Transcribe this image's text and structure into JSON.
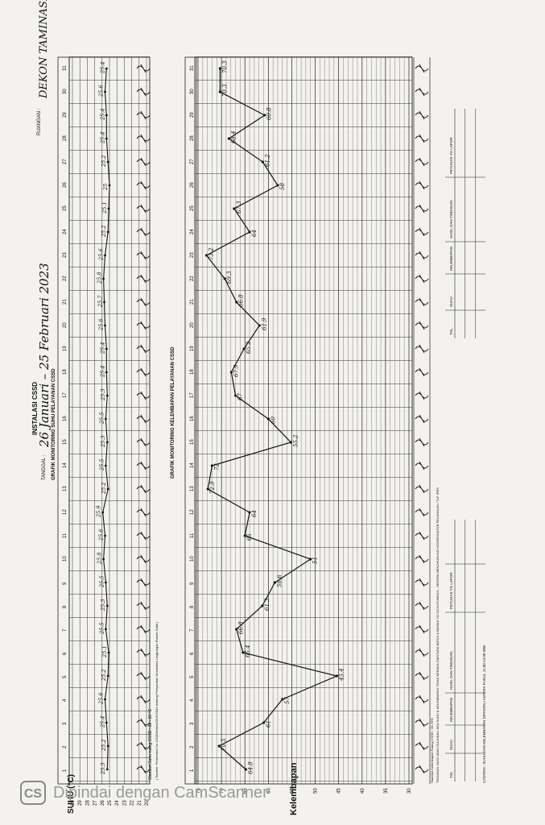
{
  "header": {
    "title": "INSTALASI CSSD",
    "date_label": "TANGGAL :",
    "date_value": "26 Januari – 25 Februari 2023",
    "subtitle": "GRAFIK MONITORING SUHU PELAYANAN CSSD",
    "room_label": "RUANGAN :",
    "room_value": "DEKON TAMINASI"
  },
  "days": [
    "1",
    "2",
    "3",
    "4",
    "5",
    "6",
    "7",
    "8",
    "9",
    "10",
    "11",
    "12",
    "13",
    "14",
    "15",
    "16",
    "17",
    "18",
    "19",
    "20",
    "21",
    "22",
    "23",
    "24",
    "25",
    "26",
    "27",
    "28",
    "29",
    "30",
    "31"
  ],
  "temp_chart": {
    "ylabel": "SUHU (°C)",
    "ticks": [
      "30",
      "29",
      "28",
      "27",
      "26",
      "25",
      "24",
      "23",
      "22",
      "21",
      "20"
    ],
    "ylim": [
      20,
      30
    ],
    "standard_note": "Standart Suhu ruang CSSD : 22 - 30 °C",
    "source_note": "( Sumber: Permenkes No.1204/Menkes/SK/X/2004 tentang Persyaratan Kesehatan Lingkungan Rumah Sakit )"
  },
  "humidity_chart": {
    "title": "GRAFIK MONITORING KELEMBAPAN PELAYANAN CSSD",
    "ylabel": "Kelembapan",
    "ticks": [
      "75",
      "70",
      "65",
      "60",
      "55",
      "50",
      "45",
      "40",
      "35",
      "30"
    ],
    "ylim": [
      30,
      75
    ],
    "standard_note": "Standart Kelembapan Ruang CSSD : 35-75%"
  },
  "action_table": {
    "note": "TINDAKAN YANG AKAN DIAJUKAN JIKA SUHU & KELEMBAPAN TIDAK BERADA DIANTARA BATAS & BAWAH YG DICANTUMKAN , SEGERA MENGHUBUNGI KOORDINATOR PELAYANAN / TLP IPRS",
    "headers": [
      "TGL",
      "SUHU",
      "KELEMBAPAN",
      "HASIL DAN TINDAKAN",
      "PETUGAS YG LAPOR"
    ]
  },
  "footer": {
    "note": "CATATAN : SUHU DAN KELEMBAPAN DIPANTAU ANTARA PUKUL 11.00-13.00 WIB"
  },
  "watermark": {
    "badge": "CS",
    "text": "Dipindai dengan CamScanner"
  },
  "chart_data": [
    {
      "type": "line",
      "x": [
        1,
        2,
        3,
        4,
        5,
        6,
        7,
        8,
        9,
        10,
        11,
        12,
        13,
        14,
        15,
        16,
        17,
        18,
        19,
        20,
        21,
        22,
        23,
        24,
        25,
        26,
        27,
        28,
        29,
        30,
        31
      ],
      "series": [
        {
          "values": [
            25.3,
            25.2,
            25.4,
            25.6,
            25.2,
            25.1,
            25.5,
            25.3,
            25.5,
            25.8,
            25.6,
            25.9,
            25.2,
            25.5,
            25.3,
            25.5,
            25.3,
            25.4,
            25.4,
            25.6,
            25.7,
            25.8,
            25.6,
            25.2,
            25.1,
            25.0,
            25.2,
            25.4,
            25.4,
            25.6,
            25.4
          ]
        }
      ],
      "xlabel": "",
      "ylabel": "SUHU (°C)",
      "ylim": [
        20,
        30
      ]
    },
    {
      "type": "line",
      "x": [
        1,
        2,
        3,
        4,
        5,
        6,
        7,
        8,
        9,
        10,
        11,
        12,
        13,
        14,
        15,
        16,
        17,
        18,
        19,
        20,
        21,
        22,
        23,
        24,
        25,
        26,
        27,
        28,
        29,
        30,
        31
      ],
      "series": [
        {
          "values": [
            64.8,
            70.5,
            61,
            57,
            45.4,
            65.4,
            66.8,
            61.3,
            58.6,
            51,
            65,
            64,
            72.9,
            72,
            55.2,
            60,
            67,
            67.9,
            65.2,
            61.9,
            66.8,
            69.3,
            73.2,
            64,
            67.3,
            58,
            61.2,
            68.4,
            60.8,
            70.3,
            70.3
          ]
        }
      ],
      "xlabel": "",
      "ylabel": "Kelembapan",
      "ylim": [
        30,
        75
      ]
    }
  ]
}
